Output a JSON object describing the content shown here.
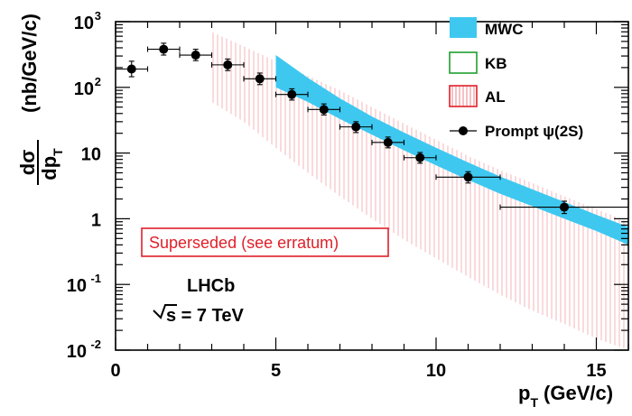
{
  "chart_data": {
    "type": "scatter",
    "xlabel": "p",
    "xlabel_sub": "T",
    "xlabel_unit": "(GeV/c)",
    "ylabel_num": "dσ",
    "ylabel_den": "dp",
    "ylabel_den_sub": "T",
    "ylabel_unit": "(nb/GeV/c)",
    "xlim": [
      0,
      16
    ],
    "ylim": [
      0.01,
      1000
    ],
    "yscale": "log",
    "grid": false,
    "legend_placement": "top-right",
    "x_ticks": [
      "0",
      "5",
      "10",
      "15"
    ],
    "y_ticks": [
      {
        "base": "10",
        "exp": "-2"
      },
      {
        "base": "10",
        "exp": "-1"
      },
      {
        "base": "1",
        "exp": ""
      },
      {
        "base": "10",
        "exp": ""
      },
      {
        "base": "10",
        "exp": "2"
      },
      {
        "base": "10",
        "exp": "3"
      }
    ],
    "legend": [
      {
        "label": "MWC",
        "style": "filled-band",
        "color": "#3ec8f0"
      },
      {
        "label": "KB",
        "style": "empty-box",
        "color": "#1f9e2f"
      },
      {
        "label": "AL",
        "style": "hatched-box",
        "color": "#e0202a"
      },
      {
        "label": "Prompt ψ(2S)",
        "style": "marker-errorbar",
        "color": "#000000"
      }
    ],
    "series": [
      {
        "name": "Prompt ψ(2S)",
        "points": [
          {
            "x": 0.5,
            "xerr": 0.5,
            "y": 190,
            "ylo": 145,
            "yhi": 250
          },
          {
            "x": 1.5,
            "xerr": 0.5,
            "y": 380,
            "ylo": 310,
            "yhi": 470
          },
          {
            "x": 2.5,
            "xerr": 0.5,
            "y": 310,
            "ylo": 255,
            "yhi": 380
          },
          {
            "x": 3.5,
            "xerr": 0.5,
            "y": 220,
            "ylo": 180,
            "yhi": 270
          },
          {
            "x": 4.5,
            "xerr": 0.5,
            "y": 135,
            "ylo": 110,
            "yhi": 165
          },
          {
            "x": 5.5,
            "xerr": 0.5,
            "y": 78,
            "ylo": 64,
            "yhi": 95
          },
          {
            "x": 6.5,
            "xerr": 0.5,
            "y": 46,
            "ylo": 38,
            "yhi": 56
          },
          {
            "x": 7.5,
            "xerr": 0.5,
            "y": 25,
            "ylo": 20.5,
            "yhi": 30
          },
          {
            "x": 8.5,
            "xerr": 0.5,
            "y": 14.5,
            "ylo": 12,
            "yhi": 17.5
          },
          {
            "x": 9.5,
            "xerr": 0.5,
            "y": 8.5,
            "ylo": 7,
            "yhi": 10.2
          },
          {
            "x": 11.0,
            "xerr": 1.0,
            "y": 4.3,
            "ylo": 3.5,
            "yhi": 5.2
          },
          {
            "x": 14.0,
            "xerr": 2.0,
            "y": 1.5,
            "ylo": 1.2,
            "yhi": 1.85
          }
        ]
      }
    ],
    "bands": [
      {
        "name": "MWC",
        "color": "#3ec8f0",
        "x": [
          5,
          6,
          7,
          8,
          9,
          10,
          11,
          12,
          13,
          14,
          15,
          16
        ],
        "low": [
          100,
          60,
          33,
          19,
          11,
          6.5,
          3.9,
          2.4,
          1.55,
          1.0,
          0.65,
          0.4
        ],
        "high": [
          310,
          140,
          68,
          36,
          20.5,
          12,
          7.2,
          4.4,
          2.8,
          1.8,
          1.15,
          0.75
        ]
      },
      {
        "name": "AL",
        "color": "#e0202a",
        "x": [
          3,
          4,
          5,
          6,
          7,
          8,
          9,
          10,
          11,
          12,
          13,
          14,
          15,
          16
        ],
        "low": [
          60,
          30,
          12,
          5,
          2.2,
          1.0,
          0.48,
          0.25,
          0.13,
          0.07,
          0.04,
          0.025,
          0.015,
          0.01
        ],
        "high": [
          700,
          420,
          250,
          150,
          90,
          50,
          28,
          16,
          9,
          5.5,
          3.5,
          2.2,
          1.4,
          0.9
        ]
      }
    ],
    "annotations": {
      "stamp": "Superseded (see erratum)",
      "experiment": "LHCb",
      "energy_prefix": "s",
      "energy_value": " = 7 TeV"
    }
  }
}
